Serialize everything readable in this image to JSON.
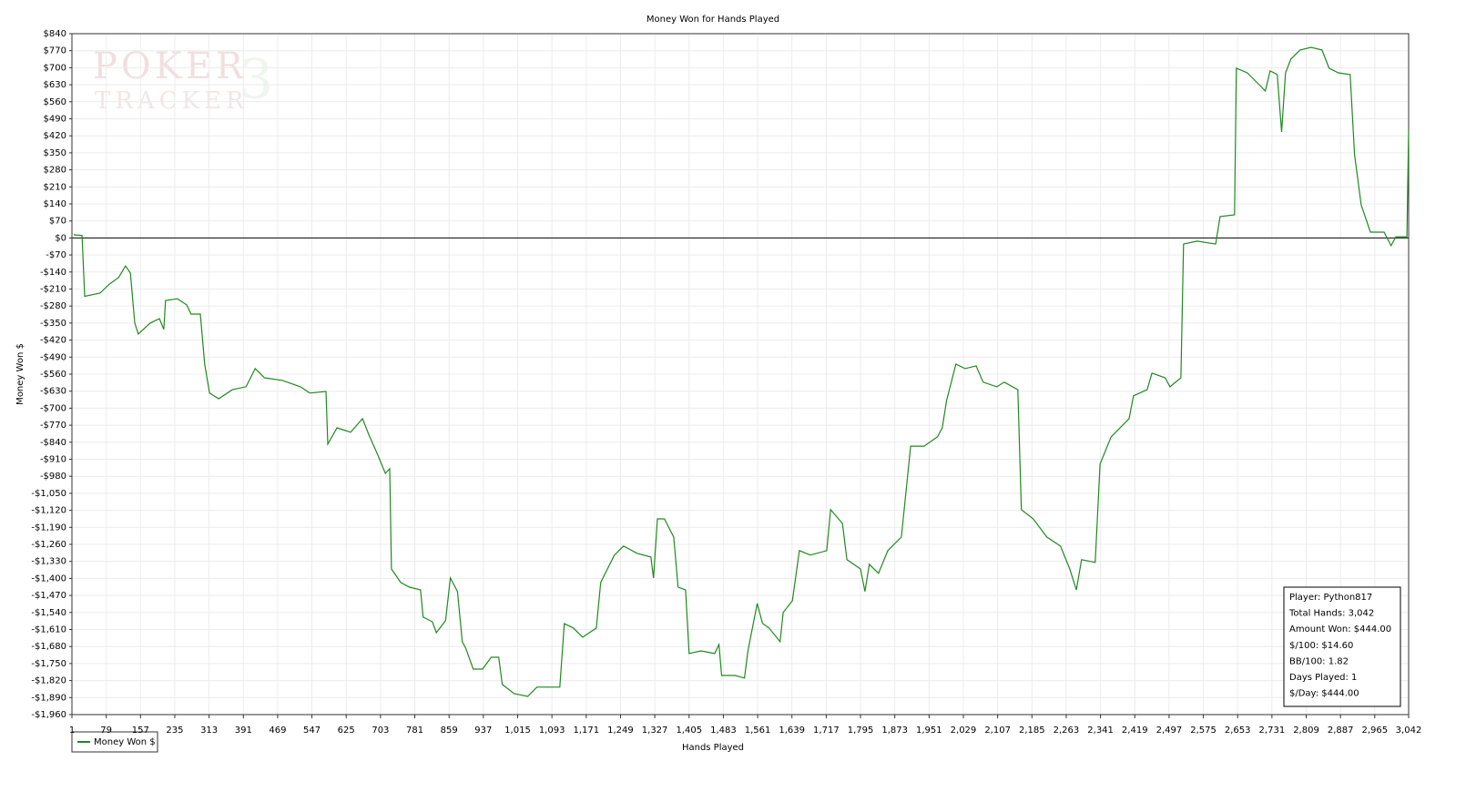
{
  "chart_data": {
    "type": "line",
    "title": "Money Won for Hands Played",
    "x_label": "Hands Played",
    "y_label": "Money Won $",
    "watermark": {
      "line1": "POKER",
      "line2": "TRACKER",
      "badge": "3"
    },
    "xlim": [
      1,
      3042
    ],
    "ylim": [
      -1960,
      840
    ],
    "grid": true,
    "xticks": [
      1,
      79,
      157,
      235,
      313,
      391,
      469,
      547,
      625,
      703,
      781,
      859,
      937,
      {
        "value": 1015,
        "label": "1,015"
      },
      {
        "value": 1093,
        "label": "1,093"
      },
      {
        "value": 1171,
        "label": "1,171"
      },
      {
        "value": 1249,
        "label": "1,249"
      },
      {
        "value": 1327,
        "label": "1,327"
      },
      {
        "value": 1405,
        "label": "1,405"
      },
      {
        "value": 1483,
        "label": "1,483"
      },
      {
        "value": 1561,
        "label": "1,561"
      },
      {
        "value": 1639,
        "label": "1,639"
      },
      {
        "value": 1717,
        "label": "1,717"
      },
      {
        "value": 1795,
        "label": "1,795"
      },
      {
        "value": 1873,
        "label": "1,873"
      },
      {
        "value": 1951,
        "label": "1,951"
      },
      {
        "value": 2029,
        "label": "2,029"
      },
      {
        "value": 2107,
        "label": "2,107"
      },
      {
        "value": 2185,
        "label": "2,185"
      },
      {
        "value": 2263,
        "label": "2,263"
      },
      {
        "value": 2341,
        "label": "2,341"
      },
      {
        "value": 2419,
        "label": "2,419"
      },
      {
        "value": 2497,
        "label": "2,497"
      },
      {
        "value": 2575,
        "label": "2,575"
      },
      {
        "value": 2653,
        "label": "2,653"
      },
      {
        "value": 2731,
        "label": "2,731"
      },
      {
        "value": 2809,
        "label": "2,809"
      },
      {
        "value": 2887,
        "label": "2,887"
      },
      {
        "value": 2965,
        "label": "2,965"
      },
      {
        "value": 3042,
        "label": "3,042"
      }
    ],
    "yticks": [
      {
        "value": 840,
        "label": "$840"
      },
      {
        "value": 770,
        "label": "$770"
      },
      {
        "value": 700,
        "label": "$700"
      },
      {
        "value": 630,
        "label": "$630"
      },
      {
        "value": 560,
        "label": "$560"
      },
      {
        "value": 490,
        "label": "$490"
      },
      {
        "value": 420,
        "label": "$420"
      },
      {
        "value": 350,
        "label": "$350"
      },
      {
        "value": 280,
        "label": "$280"
      },
      {
        "value": 210,
        "label": "$210"
      },
      {
        "value": 140,
        "label": "$140"
      },
      {
        "value": 70,
        "label": "$70"
      },
      {
        "value": 0,
        "label": "$0"
      },
      {
        "value": -70,
        "label": "-$70"
      },
      {
        "value": -140,
        "label": "-$140"
      },
      {
        "value": -210,
        "label": "-$210"
      },
      {
        "value": -280,
        "label": "-$280"
      },
      {
        "value": -350,
        "label": "-$350"
      },
      {
        "value": -420,
        "label": "-$420"
      },
      {
        "value": -490,
        "label": "-$490"
      },
      {
        "value": -560,
        "label": "-$560"
      },
      {
        "value": -630,
        "label": "-$630"
      },
      {
        "value": -700,
        "label": "-$700"
      },
      {
        "value": -770,
        "label": "-$770"
      },
      {
        "value": -840,
        "label": "-$840"
      },
      {
        "value": -910,
        "label": "-$910"
      },
      {
        "value": -980,
        "label": "-$980"
      },
      {
        "value": -1050,
        "label": "-$1,050"
      },
      {
        "value": -1120,
        "label": "-$1,120"
      },
      {
        "value": -1190,
        "label": "-$1,190"
      },
      {
        "value": -1260,
        "label": "-$1,260"
      },
      {
        "value": -1330,
        "label": "-$1,330"
      },
      {
        "value": -1400,
        "label": "-$1,400"
      },
      {
        "value": -1470,
        "label": "-$1,470"
      },
      {
        "value": -1540,
        "label": "-$1,540"
      },
      {
        "value": -1610,
        "label": "-$1,610"
      },
      {
        "value": -1680,
        "label": "-$1,680"
      },
      {
        "value": -1750,
        "label": "-$1,750"
      },
      {
        "value": -1820,
        "label": "-$1,820"
      },
      {
        "value": -1890,
        "label": "-$1,890"
      },
      {
        "value": -1960,
        "label": "-$1,960"
      }
    ],
    "x": [
      5,
      24,
      30,
      65,
      86,
      107,
      123,
      134,
      144,
      152,
      179,
      200,
      210,
      214,
      241,
      262,
      272,
      293,
      303,
      314,
      335,
      366,
      397,
      418,
      439,
      480,
      521,
      542,
      579,
      583,
      604,
      635,
      662,
      677,
      697,
      714,
      724,
      728,
      749,
      769,
      794,
      800,
      821,
      830,
      851,
      862,
      878,
      889,
      897,
      914,
      935,
      955,
      972,
      980,
      1007,
      1038,
      1059,
      1090,
      1111,
      1121,
      1142,
      1163,
      1194,
      1204,
      1235,
      1256,
      1287,
      1318,
      1324,
      1333,
      1349,
      1370,
      1380,
      1397,
      1405,
      1432,
      1463,
      1473,
      1479,
      1510,
      1531,
      1539,
      1560,
      1572,
      1587,
      1612,
      1619,
      1640,
      1656,
      1681,
      1718,
      1727,
      1754,
      1764,
      1795,
      1805,
      1815,
      1836,
      1857,
      1888,
      1909,
      1940,
      1970,
      1981,
      1991,
      2012,
      2033,
      2058,
      2074,
      2105,
      2122,
      2153,
      2161,
      2188,
      2219,
      2250,
      2271,
      2286,
      2298,
      2329,
      2340,
      2365,
      2406,
      2416,
      2447,
      2458,
      2488,
      2499,
      2524,
      2530,
      2561,
      2603,
      2613,
      2646,
      2650,
      2675,
      2706,
      2716,
      2727,
      2743,
      2753,
      2762,
      2774,
      2795,
      2820,
      2845,
      2861,
      2882,
      2909,
      2919,
      2934,
      2955,
      2986,
      3002,
      3013,
      3038,
      3042
    ],
    "series": [
      {
        "name": "Money Won $",
        "color": "#1f8a1f",
        "values": [
          13,
          10,
          -240,
          -227,
          -190,
          -163,
          -115,
          -145,
          -350,
          -395,
          -350,
          -332,
          -376,
          -257,
          -250,
          -275,
          -313,
          -313,
          -519,
          -638,
          -661,
          -624,
          -612,
          -537,
          -575,
          -586,
          -612,
          -638,
          -631,
          -848,
          -781,
          -799,
          -743,
          -811,
          -893,
          -968,
          -949,
          -1361,
          -1417,
          -1436,
          -1447,
          -1559,
          -1578,
          -1623,
          -1574,
          -1398,
          -1454,
          -1660,
          -1687,
          -1773,
          -1773,
          -1724,
          -1724,
          -1836,
          -1874,
          -1885,
          -1847,
          -1847,
          -1847,
          -1586,
          -1604,
          -1642,
          -1604,
          -1417,
          -1304,
          -1267,
          -1297,
          -1312,
          -1398,
          -1155,
          -1155,
          -1230,
          -1436,
          -1447,
          -1709,
          -1698,
          -1709,
          -1672,
          -1799,
          -1799,
          -1810,
          -1698,
          -1503,
          -1585,
          -1604,
          -1660,
          -1540,
          -1492,
          -1286,
          -1304,
          -1286,
          -1117,
          -1174,
          -1323,
          -1361,
          -1454,
          -1342,
          -1379,
          -1286,
          -1230,
          -856,
          -856,
          -818,
          -781,
          -668,
          -519,
          -537,
          -526,
          -593,
          -612,
          -593,
          -624,
          -1117,
          -1155,
          -1230,
          -1267,
          -1361,
          -1447,
          -1323,
          -1334,
          -930,
          -818,
          -743,
          -649,
          -624,
          -556,
          -575,
          -612,
          -575,
          -25,
          -13,
          -25,
          88,
          95,
          698,
          679,
          623,
          604,
          687,
          672,
          436,
          679,
          735,
          773,
          784,
          773,
          698,
          679,
          672,
          342,
          136,
          24,
          24,
          -32,
          5,
          5,
          444
        ]
      }
    ],
    "info_box": [
      "Player: Python817",
      "Total Hands: 3,042",
      "Amount Won: $444.00",
      "$/100: $14.60",
      "BB/100: 1.82",
      "Days Played: 1",
      "$/Day: $444.00"
    ]
  }
}
